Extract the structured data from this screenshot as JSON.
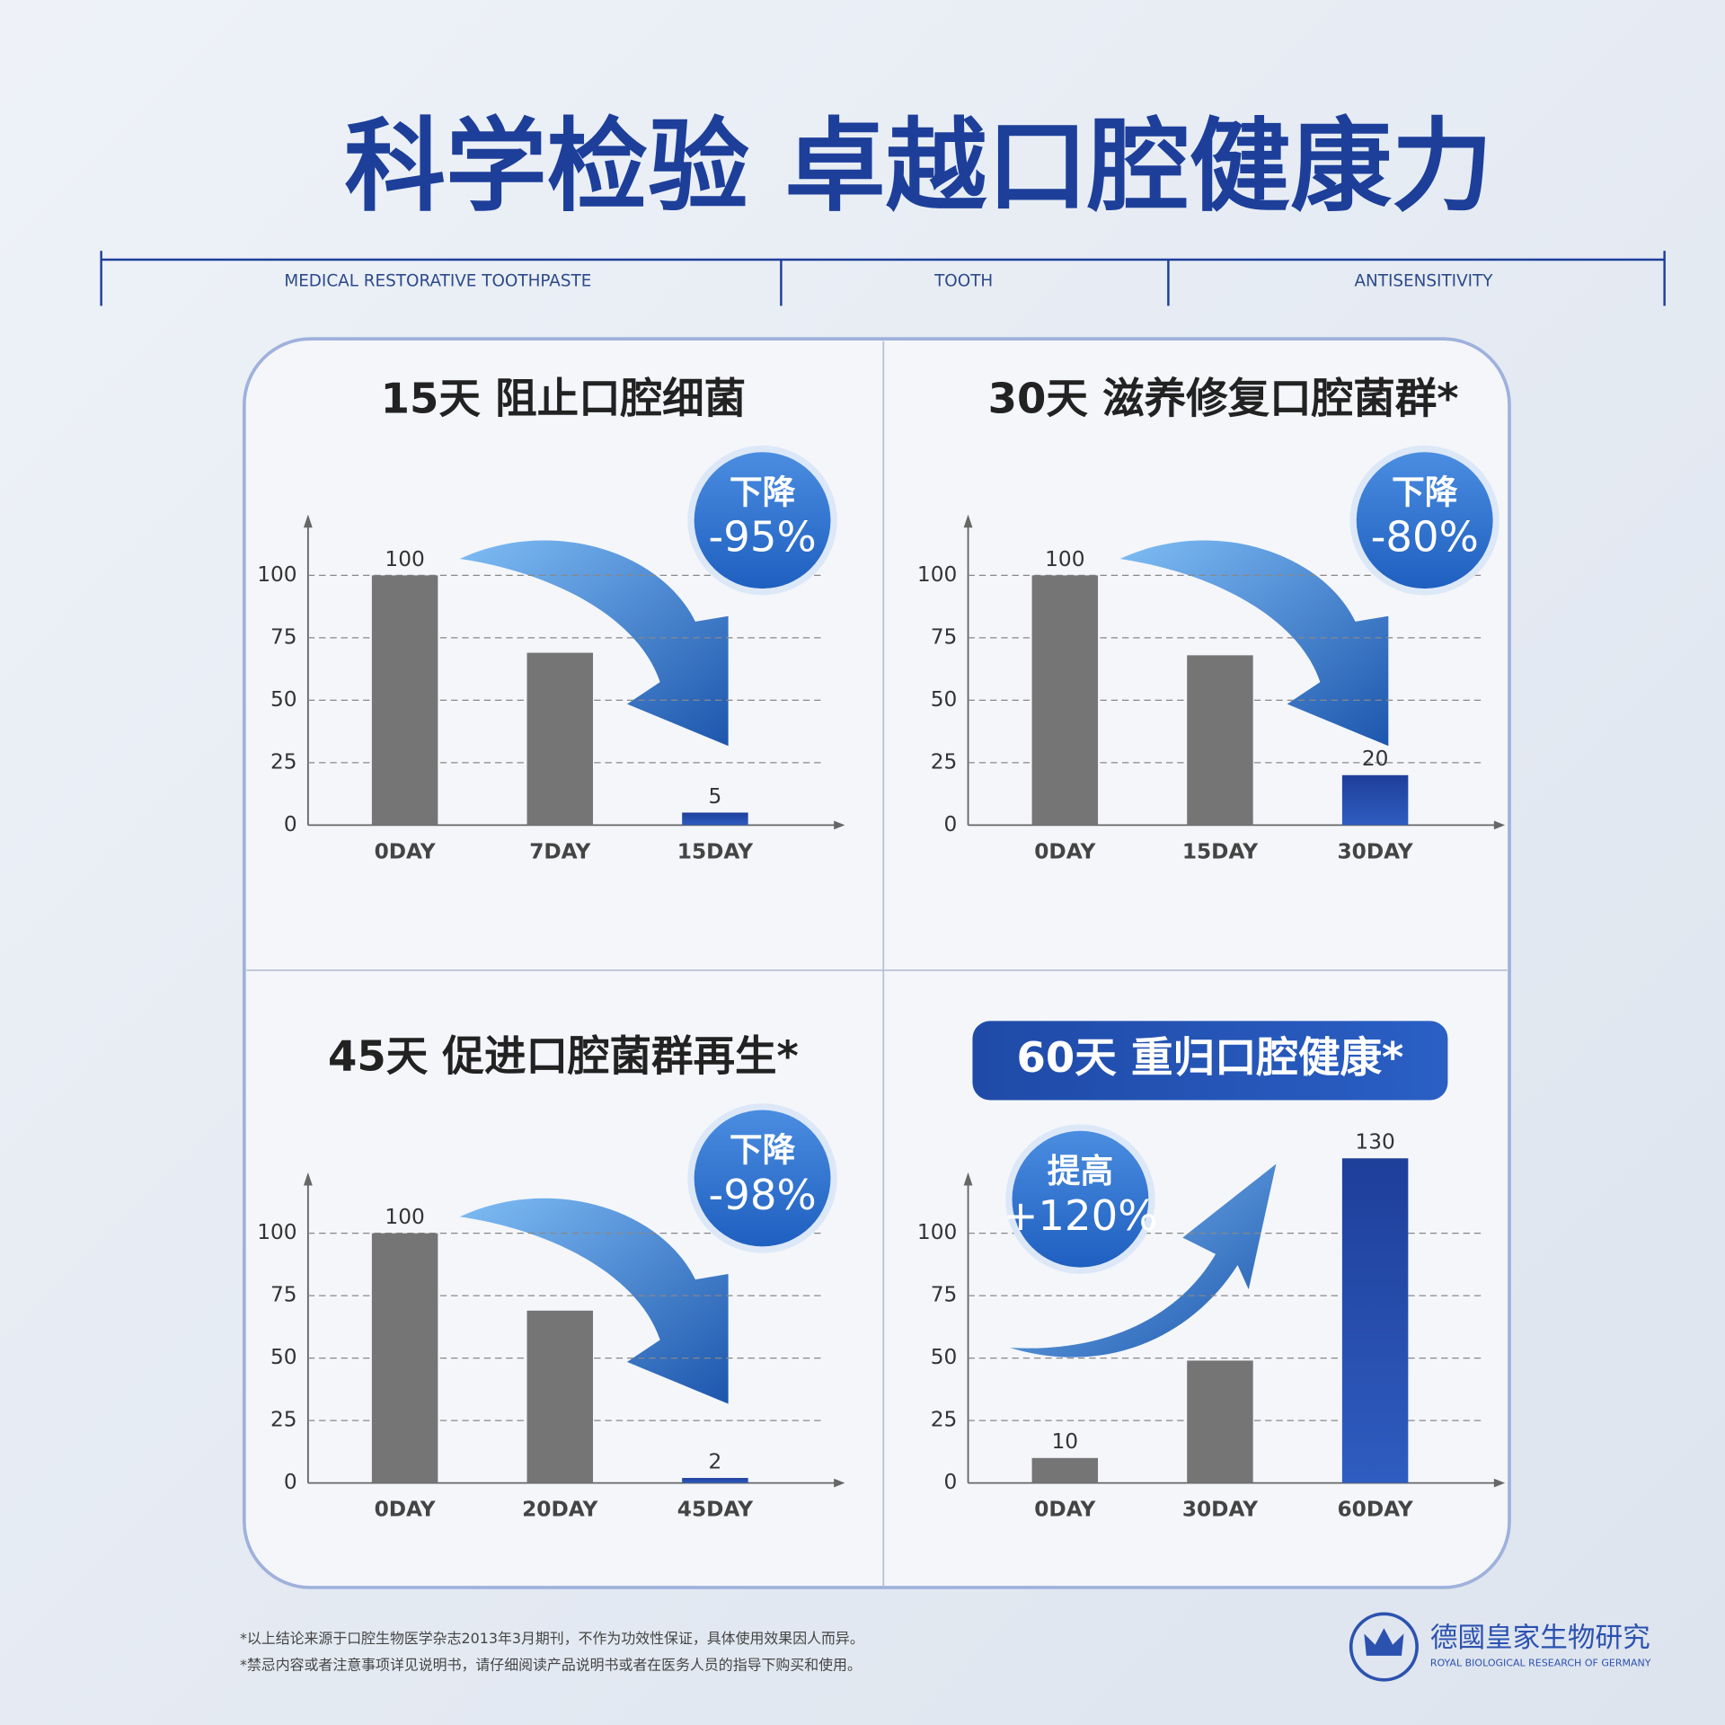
{
  "header": {
    "title": "科学检验 卓越口腔健康力",
    "tags": [
      "MEDICAL RESTORATIVE TOOTHPASTE",
      "TOOTH",
      "ANTISENSITIVITY"
    ]
  },
  "chart_data": [
    {
      "type": "bar",
      "title": "15天 阻止口腔细菌",
      "badge": {
        "label": "下降",
        "text": "-95%"
      },
      "categories": [
        "0DAY",
        "7DAY",
        "15DAY"
      ],
      "values": [
        100,
        69,
        5
      ],
      "value_labels": [
        "100",
        null,
        "5"
      ],
      "colors": [
        "#757575",
        "#757575",
        "#2c52b0"
      ],
      "ylim": [
        0,
        120
      ],
      "yticks": [
        0,
        25,
        50,
        75,
        100
      ],
      "grid": true
    },
    {
      "type": "bar",
      "title": "30天 滋养修复口腔菌群*",
      "badge": {
        "label": "下降",
        "text": "-80%"
      },
      "categories": [
        "0DAY",
        "15DAY",
        "30DAY"
      ],
      "values": [
        100,
        68,
        20
      ],
      "value_labels": [
        "100",
        null,
        "20"
      ],
      "colors": [
        "#757575",
        "#757575",
        "#2c52b0"
      ],
      "ylim": [
        0,
        120
      ],
      "yticks": [
        0,
        25,
        50,
        75,
        100
      ],
      "grid": true
    },
    {
      "type": "bar",
      "title": "45天 促进口腔菌群再生*",
      "badge": {
        "label": "下降",
        "text": "-98%"
      },
      "categories": [
        "0DAY",
        "20DAY",
        "45DAY"
      ],
      "values": [
        100,
        69,
        2
      ],
      "value_labels": [
        "100",
        null,
        "2"
      ],
      "colors": [
        "#757575",
        "#757575",
        "#2c52b0"
      ],
      "ylim": [
        0,
        120
      ],
      "yticks": [
        0,
        25,
        50,
        75,
        100
      ],
      "grid": true
    },
    {
      "type": "bar",
      "title": "60天 重归口腔健康*",
      "title_style": "pill",
      "badge": {
        "label": "提高",
        "text": "+120%"
      },
      "categories": [
        "0DAY",
        "30DAY",
        "60DAY"
      ],
      "values": [
        10,
        49,
        130
      ],
      "value_labels": [
        "10",
        null,
        "130"
      ],
      "colors": [
        "#757575",
        "#757575",
        "#2c52b0"
      ],
      "ylim": [
        0,
        120
      ],
      "yticks": [
        0,
        25,
        50,
        75,
        100
      ],
      "grid": true
    }
  ],
  "footer": {
    "notes": [
      "*以上结论来源于口腔生物医学杂志2013年3月期刊，不作为功效性保证，具体使用效果因人而异。",
      "*禁忌内容或者注意事项详见说明书，请仔细阅读产品说明书或者在医务人员的指导下购买和使用。"
    ],
    "brand": "德國皇家生物研究",
    "brand_en": "ROYAL BIOLOGICAL RESEARCH OF GERMANY"
  }
}
